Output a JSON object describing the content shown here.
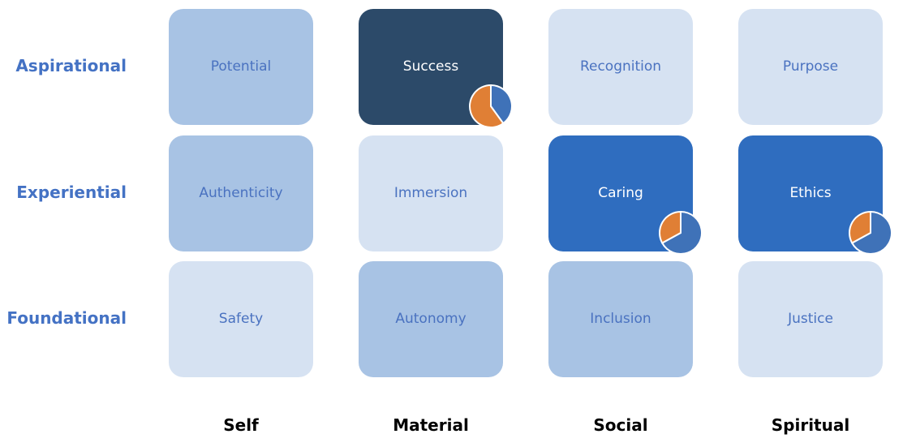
{
  "rows": [
    "Aspirational",
    "Experiential",
    "Foundational"
  ],
  "columns": [
    "Self",
    "Material",
    "Social",
    "Spiritual"
  ],
  "tiles": [
    [
      {
        "label": "Potential",
        "shade": "medium"
      },
      {
        "label": "Success",
        "shade": "dark",
        "pie": {
          "blue": 0.4,
          "orange": 0.6
        }
      },
      {
        "label": "Recognition",
        "shade": "light"
      },
      {
        "label": "Purpose",
        "shade": "light"
      }
    ],
    [
      {
        "label": "Authenticity",
        "shade": "medium"
      },
      {
        "label": "Immersion",
        "shade": "light"
      },
      {
        "label": "Caring",
        "shade": "blue",
        "pie": {
          "blue": 0.67,
          "orange": 0.33
        }
      },
      {
        "label": "Ethics",
        "shade": "blue",
        "pie": {
          "blue": 0.67,
          "orange": 0.33
        }
      }
    ],
    [
      {
        "label": "Safety",
        "shade": "light"
      },
      {
        "label": "Autonomy",
        "shade": "medium"
      },
      {
        "label": "Inclusion",
        "shade": "medium"
      },
      {
        "label": "Justice",
        "shade": "light"
      }
    ]
  ],
  "colors": {
    "pie_blue": "#3f72b8",
    "pie_orange": "#e07f35",
    "row_label": "#4472c4"
  }
}
